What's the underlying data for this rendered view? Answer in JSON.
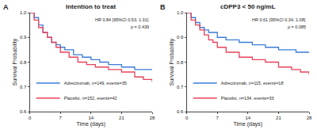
{
  "chart_data": [
    {
      "type": "line",
      "panel_label": "A",
      "title": "Intention to treat",
      "x_label": "Time (days)",
      "y_label": "Survival Probability",
      "xlim": [
        0,
        28
      ],
      "xticks": [
        0,
        7,
        14,
        21,
        28
      ],
      "ylim": [
        0.6,
        1.0
      ],
      "yticks": [
        0.6,
        0.7,
        0.8,
        0.9,
        {
          "value": 1.0,
          "label": "1.0"
        }
      ],
      "grid": false,
      "legend": "lower left",
      "line_style": "step",
      "annotations": [
        "HR 0.84 [95%CI 0.53, 1.31]",
        "p = 0.439"
      ],
      "series": [
        {
          "name": "Adrecizumab, n=149, events=35",
          "color": "#3b7dd8",
          "x": [
            0,
            1,
            2,
            3,
            4,
            5,
            6,
            7,
            8,
            10,
            12,
            14,
            16,
            18,
            21,
            24,
            28
          ],
          "values": [
            1.0,
            0.98,
            0.95,
            0.92,
            0.9,
            0.88,
            0.87,
            0.86,
            0.85,
            0.83,
            0.82,
            0.81,
            0.8,
            0.79,
            0.78,
            0.77,
            0.77
          ]
        },
        {
          "name": "Placebo, n=152, events=42",
          "color": "#e8435a",
          "x": [
            0,
            1,
            2,
            3,
            4,
            5,
            6,
            7,
            9,
            11,
            13,
            15,
            18,
            21,
            24,
            26,
            28
          ],
          "values": [
            1.0,
            0.97,
            0.94,
            0.92,
            0.9,
            0.88,
            0.86,
            0.84,
            0.82,
            0.8,
            0.79,
            0.78,
            0.77,
            0.76,
            0.74,
            0.73,
            0.72
          ]
        }
      ]
    },
    {
      "type": "line",
      "panel_label": "B",
      "title": "cDPP3 < 50 ng/mL",
      "x_label": "Time (days)",
      "y_label": "Survival Probability",
      "xlim": [
        0,
        28
      ],
      "xticks": [
        0,
        7,
        14,
        21,
        28
      ],
      "ylim": [
        0.6,
        1.0
      ],
      "yticks": [
        0.6,
        0.7,
        0.8,
        0.9,
        {
          "value": 1.0,
          "label": "1.0"
        }
      ],
      "grid": false,
      "legend": "lower left",
      "line_style": "step",
      "annotations": [
        "HR 0.61 [95%CI 0.34, 1.08]",
        "p = 0.085"
      ],
      "series": [
        {
          "name": "Adrecizumab, n=115, events=18",
          "color": "#3b7dd8",
          "x": [
            0,
            1,
            2,
            3,
            4,
            5,
            7,
            9,
            12,
            15,
            18,
            21,
            25,
            28
          ],
          "values": [
            1.0,
            0.98,
            0.96,
            0.94,
            0.93,
            0.92,
            0.9,
            0.89,
            0.88,
            0.87,
            0.86,
            0.85,
            0.84,
            0.84
          ]
        },
        {
          "name": "Placebo, n=134, events=33",
          "color": "#e8435a",
          "x": [
            0,
            1,
            2,
            3,
            4,
            5,
            6,
            7,
            9,
            12,
            15,
            18,
            21,
            24,
            26,
            28
          ],
          "values": [
            1.0,
            0.97,
            0.95,
            0.93,
            0.91,
            0.89,
            0.88,
            0.86,
            0.84,
            0.82,
            0.81,
            0.8,
            0.78,
            0.77,
            0.76,
            0.75
          ]
        }
      ]
    }
  ]
}
